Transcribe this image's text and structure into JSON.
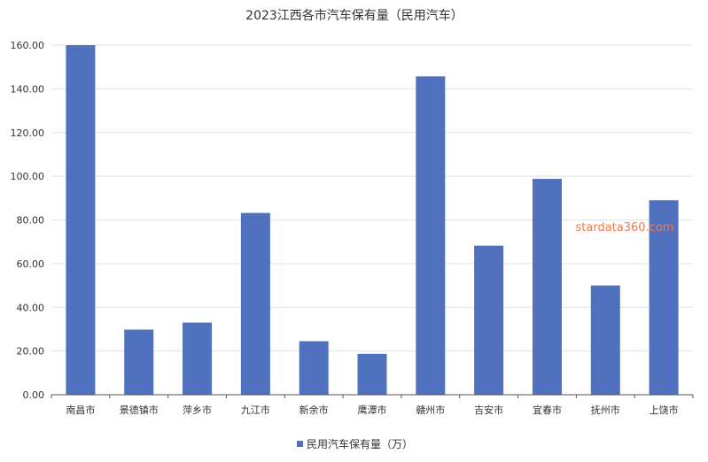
{
  "chart_data": {
    "type": "bar",
    "title": "2023江西各市汽车保有量（民用汽车）",
    "categories": [
      "南昌市",
      "景德镇市",
      "萍乡市",
      "九江市",
      "新余市",
      "鹰潭市",
      "赣州市",
      "吉安市",
      "宜春市",
      "抚州市",
      "上饶市"
    ],
    "series": [
      {
        "name": "民用汽车保有量（万）",
        "values": [
          160.0,
          29.8,
          33.0,
          83.2,
          24.5,
          18.7,
          145.7,
          68.2,
          98.8,
          50.0,
          89.0
        ],
        "color": "#4f71be"
      }
    ],
    "ylim": [
      0,
      160
    ],
    "yticks": [
      "0.00",
      "20.00",
      "40.00",
      "60.00",
      "80.00",
      "100.00",
      "120.00",
      "140.00",
      "160.00"
    ],
    "grid": true,
    "legend_position": "bottom-center"
  },
  "watermark": "stardata360.com"
}
